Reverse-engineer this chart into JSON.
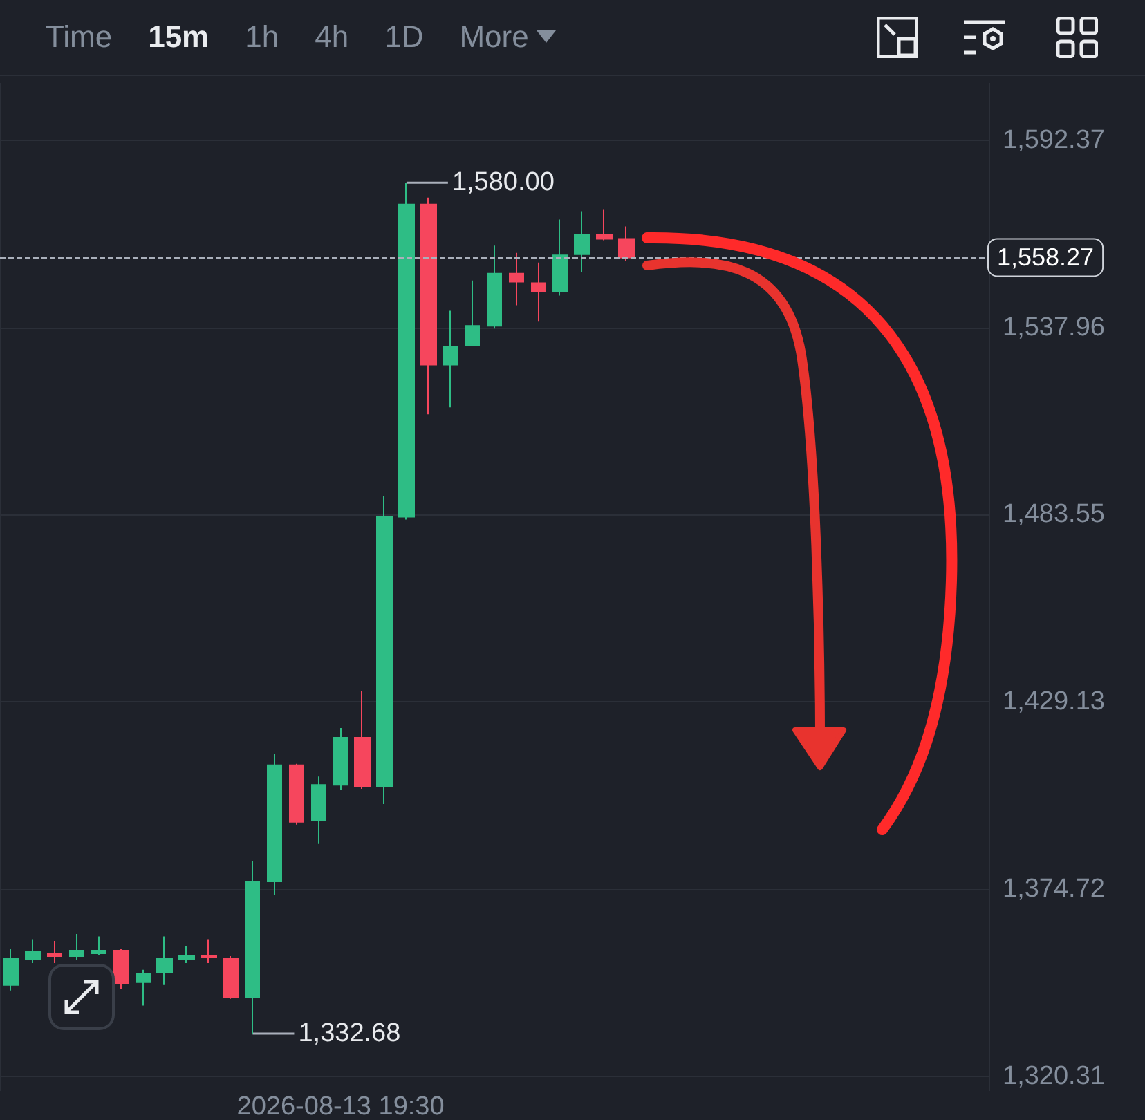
{
  "chart_data": {
    "type": "candlestick",
    "categories": [
      null,
      null,
      null,
      null,
      null,
      null,
      null,
      null,
      null,
      null,
      null,
      null,
      null,
      null,
      null,
      "2026-08-13 19:30",
      null,
      null,
      null,
      null,
      null,
      null,
      null,
      null,
      null,
      null,
      null,
      null,
      null,
      null,
      null,
      null,
      null,
      null,
      null,
      null,
      null,
      null,
      null,
      null,
      null,
      null,
      null,
      null,
      null
    ],
    "ohlc": [
      [
        1346.8,
        1357.2,
        1345.2,
        1354.4
      ],
      [
        1354.4,
        1360.1,
        1353.2,
        1356.4
      ],
      [
        1356.0,
        1359.6,
        1353.2,
        1355.2
      ],
      [
        1355.2,
        1361.6,
        1354.0,
        1356.8
      ],
      [
        1356.0,
        1360.9,
        1355.6,
        1356.8
      ],
      [
        1356.8,
        1357.2,
        1345.6,
        1347.2
      ],
      [
        1347.6,
        1351.2,
        1340.8,
        1350.0
      ],
      [
        1350.4,
        1360.9,
        1346.8,
        1354.4
      ],
      [
        1354.4,
        1358.0,
        1353.2,
        1355.2
      ],
      [
        1355.2,
        1360.1,
        1353.2,
        1354.8
      ],
      [
        1354.4,
        1355.2,
        1342.8,
        1343.2
      ],
      [
        1343.2,
        1382.9,
        1332.68,
        1376.9
      ],
      [
        1376.9,
        1413.9,
        1372.9,
        1410.7
      ],
      [
        1410.7,
        1411.1,
        1393.4,
        1394.2
      ],
      [
        1394.6,
        1407.4,
        1387.8,
        1405.0
      ],
      [
        1405.0,
        1421.5,
        1403.4,
        1418.7
      ],
      [
        1418.7,
        1432.3,
        1403.8,
        1404.6
      ],
      [
        1404.6,
        1488.9,
        1399.4,
        1482.9
      ],
      [
        1482.9,
        1580.0,
        1482.1,
        1573.7
      ],
      [
        1573.7,
        1575.7,
        1512.7,
        1527.1
      ],
      [
        1527.1,
        1542.8,
        1514.7,
        1532.3
      ],
      [
        1532.7,
        1551.6,
        1532.7,
        1538.4
      ],
      [
        1538.4,
        1561.7,
        1537.6,
        1553.6
      ],
      [
        1553.6,
        1559.6,
        1544.4,
        1551.2
      ],
      [
        1550.8,
        1556.8,
        1539.6,
        1548.4
      ],
      [
        1548.4,
        1569.3,
        1547.2,
        1558.9
      ],
      [
        1559.2,
        1571.7,
        1554.0,
        1564.9
      ],
      [
        1564.9,
        1572.1,
        1563.3,
        1563.7
      ],
      [
        1563.7,
        1567.3,
        1557.2,
        1558.27
      ],
      null,
      null,
      null,
      null,
      null,
      null,
      null,
      null,
      null,
      null,
      null,
      null,
      null,
      null,
      null,
      null
    ],
    "colors": [
      "#2ebd85",
      "#2ebd85",
      "#f6465d",
      "#2ebd85",
      "#2ebd85",
      "#f6465d",
      "#2ebd85",
      "#2ebd85",
      "#2ebd85",
      "#f6465d",
      "#f6465d",
      "#2ebd85",
      "#2ebd85",
      "#f6465d",
      "#2ebd85",
      "#2ebd85",
      "#f6465d",
      "#2ebd85",
      "#2ebd85",
      "#f6465d",
      "#2ebd85",
      "#2ebd85",
      "#2ebd85",
      "#f6465d",
      "#f6465d",
      "#2ebd85",
      "#2ebd85",
      "#f6465d",
      "#f6465d",
      null,
      null,
      null,
      null,
      null,
      null,
      null,
      null,
      null,
      null,
      null,
      null,
      null,
      null,
      null,
      null
    ],
    "ylim": [
      1316,
      1609
    ],
    "yticks": [
      {
        "value": 1592.37,
        "label": "1,592.37"
      },
      {
        "value": 1537.96,
        "label": "1,537.96"
      },
      {
        "value": 1483.55,
        "label": "1,483.55"
      },
      {
        "value": 1429.13,
        "label": "1,429.13"
      },
      {
        "value": 1374.72,
        "label": "1,374.72"
      },
      {
        "value": 1320.31,
        "label": "1,320.31"
      }
    ],
    "ref_lines": [
      {
        "axis": "y",
        "value": 1558.27,
        "label": "1,558.27",
        "color": "#aab0bb",
        "line_style": "dashed"
      }
    ],
    "annotations": [
      "1,580.00",
      "1,332.68",
      "Time",
      "15m",
      "1h",
      "4h",
      "1D",
      "More"
    ],
    "grid": true
  }
}
